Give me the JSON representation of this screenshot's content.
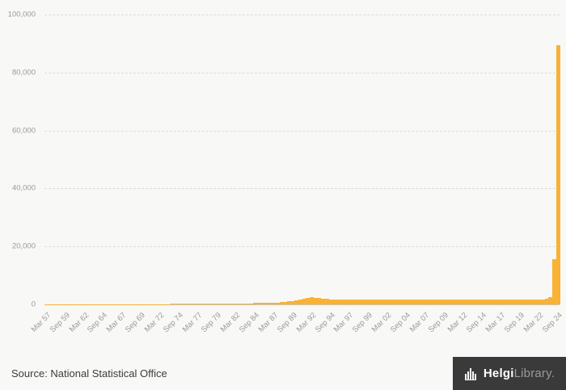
{
  "chart_data": {
    "type": "bar",
    "title": "",
    "xlabel": "",
    "ylabel": "",
    "frequency": "semiannual",
    "x_start": "Mar 1957",
    "x_end": "Sep 2024",
    "ylim": [
      0,
      100000
    ],
    "grid": true,
    "legend_position": "none",
    "bar_color": "#F9B233",
    "yticks": [
      {
        "value": 0,
        "label": "0"
      },
      {
        "value": 20000,
        "label": "20,000"
      },
      {
        "value": 40000,
        "label": "40,000"
      },
      {
        "value": 60000,
        "label": "60,000"
      },
      {
        "value": 80000,
        "label": "80,000"
      },
      {
        "value": 100000,
        "label": "100,000"
      }
    ],
    "tick_every": 5,
    "x_tick_labels": [
      "Mar 57",
      "Sep 59",
      "Mar 62",
      "Sep 64",
      "Mar 67",
      "Sep 69",
      "Mar 72",
      "Sep 74",
      "Mar 77",
      "Sep 79",
      "Mar 82",
      "Sep 84",
      "Mar 87",
      "Sep 89",
      "Mar 92",
      "Sep 94",
      "Mar 97",
      "Sep 99",
      "Mar 02",
      "Sep 04",
      "Mar 07",
      "Sep 09",
      "Mar 12",
      "Sep 14",
      "Mar 17",
      "Sep 19",
      "Mar 22",
      "Sep 24"
    ],
    "values": [
      30,
      32,
      34,
      36,
      38,
      40,
      42,
      44,
      46,
      48,
      50,
      53,
      56,
      59,
      62,
      65,
      68,
      72,
      76,
      80,
      84,
      88,
      92,
      96,
      100,
      105,
      110,
      115,
      120,
      125,
      130,
      136,
      142,
      148,
      155,
      162,
      170,
      178,
      186,
      195,
      205,
      215,
      225,
      236,
      248,
      260,
      273,
      287,
      301,
      316,
      332,
      349,
      366,
      384,
      403,
      423,
      450,
      480,
      520,
      560,
      620,
      700,
      800,
      900,
      1000,
      1150,
      1350,
      1600,
      1900,
      2200,
      2400,
      2300,
      2100,
      1950,
      1850,
      1800,
      1750,
      1720,
      1700,
      1680,
      1660,
      1650,
      1640,
      1630,
      1620,
      1610,
      1600,
      1595,
      1590,
      1585,
      1580,
      1575,
      1570,
      1565,
      1560,
      1555,
      1550,
      1548,
      1546,
      1544,
      1542,
      1540,
      1540,
      1540,
      1540,
      1540,
      1540,
      1540,
      1540,
      1540,
      1540,
      1540,
      1540,
      1540,
      1540,
      1540,
      1540,
      1540,
      1540,
      1540,
      1545,
      1550,
      1555,
      1560,
      1570,
      1580,
      1590,
      1600,
      1620,
      1650,
      1700,
      1800,
      2000,
      2600,
      15500,
      89500
    ]
  },
  "colors": {
    "accent": "#F9B233",
    "background": "#f8f8f7",
    "gridline": "#dcdcdc",
    "axis_text": "#9a9a9a",
    "footer_box": "#3a3a3a"
  },
  "footer": {
    "source": "Source: National Statistical Office",
    "logo_primary": "Helgi",
    "logo_secondary": "Library."
  }
}
